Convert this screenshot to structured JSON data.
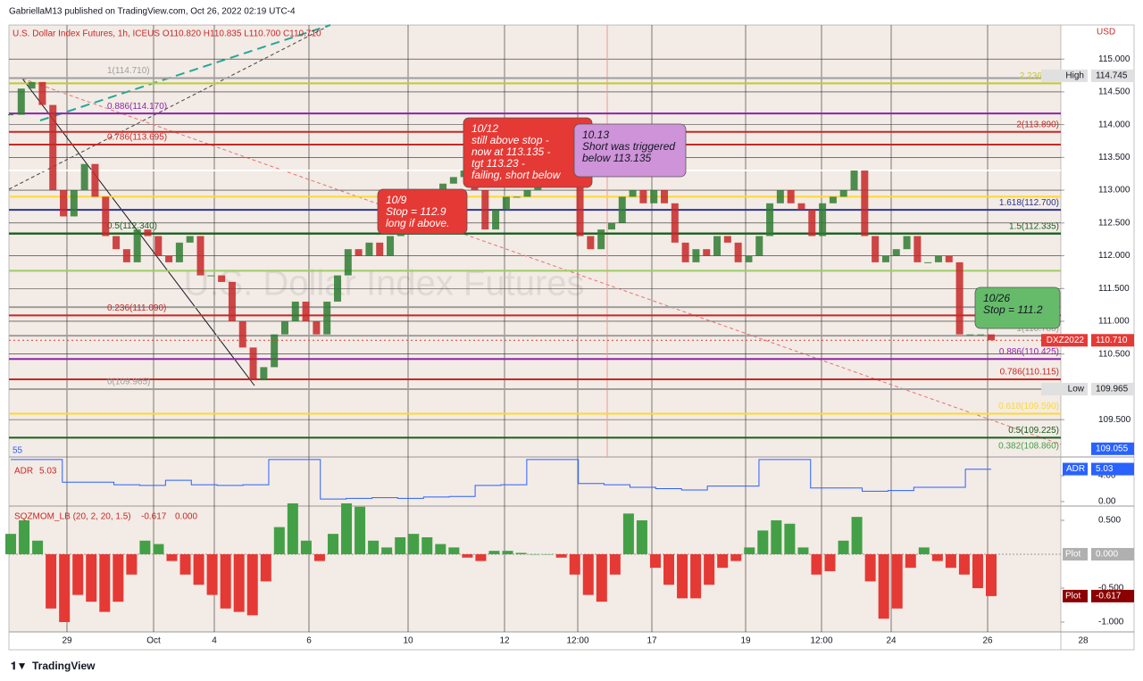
{
  "header": {
    "published": "GabriellaM13 published on TradingView.com, Oct 26, 2022 02:19 UTC-4"
  },
  "footer": {
    "brand": "TradingView"
  },
  "chart_data": [
    {
      "type": "candlestick",
      "title": "U.S. Dollar Index Futures, 1h, ICEUS  O110.820  H110.835  L110.700  C110.710",
      "watermark": "U.S. Dollar Index Futures",
      "currency": "USD",
      "side_label": "55",
      "values": [
        114.15,
        114.55,
        114.65,
        114.3,
        113.0,
        112.6,
        113.0,
        113.4,
        112.9,
        112.3,
        112.1,
        111.9,
        112.4,
        112.3,
        112.0,
        111.9,
        112.2,
        112.3,
        111.7,
        111.7,
        111.6,
        111.0,
        110.6,
        110.1,
        110.3,
        110.8,
        111.0,
        111.3,
        111.0,
        110.8,
        111.3,
        111.7,
        112.1,
        112.0,
        112.2,
        112.0,
        112.3,
        112.5,
        112.7,
        112.8,
        113.0,
        113.1,
        113.2,
        113.3,
        113.0,
        112.4,
        112.7,
        112.9,
        112.9,
        113.0,
        113.1,
        113.3,
        113.6,
        113.1,
        112.3,
        112.1,
        112.4,
        112.5,
        112.9,
        113.0,
        112.8,
        113.0,
        112.8,
        112.2,
        111.9,
        112.1,
        112.0,
        112.3,
        112.2,
        111.9,
        112.0,
        112.3,
        112.8,
        113.0,
        112.8,
        112.7,
        112.3,
        112.8,
        112.9,
        113.0,
        113.3,
        112.3,
        111.9,
        112.0,
        112.1,
        112.3,
        111.9,
        111.9,
        112.0,
        111.9,
        110.8,
        110.8,
        110.8,
        110.71
      ],
      "up_color": "#2e7d32",
      "down_color": "#c62828",
      "ylim": [
        108.93,
        115.52
      ],
      "yticks": [
        {
          "value": 115,
          "label": "115.000"
        },
        {
          "value": 114.5,
          "label": "114.500"
        },
        {
          "value": 114,
          "label": "114.000"
        },
        {
          "value": 113.5,
          "label": "113.500"
        },
        {
          "value": 113,
          "label": "113.000"
        },
        {
          "value": 112.5,
          "label": "112.500"
        },
        {
          "value": 112,
          "label": "112.000"
        },
        {
          "value": 111.5,
          "label": "111.500"
        },
        {
          "value": 111,
          "label": "111.000"
        },
        {
          "value": 110.5,
          "label": "110.500"
        },
        {
          "value": 109.5,
          "label": "109.500"
        }
      ],
      "time_labels": [
        "29",
        "Oct",
        "4",
        "6",
        "10",
        "12",
        "12:00",
        "17",
        "19",
        "12:00",
        "24",
        "26",
        "28"
      ],
      "fib_levels": [
        {
          "value": 114.71,
          "color": "#9e9e9e",
          "label": "1(114.710)",
          "side": "left"
        },
        {
          "value": 114.63,
          "color": "#c0ca33",
          "label": "2.236(114",
          "side": "right"
        },
        {
          "value": 114.17,
          "color": "#8e24aa",
          "label": "0.886(114.170)",
          "side": "left"
        },
        {
          "value": 113.89,
          "color": "#c62828",
          "label": "2(113.890)",
          "side": "right"
        },
        {
          "value": 113.695,
          "color": "#c62828",
          "label": "0.786(113.695)",
          "side": "left"
        },
        {
          "value": 113.3,
          "color": "#ffffff"
        },
        {
          "value": 112.9,
          "color": "#fdd835"
        },
        {
          "value": 112.7,
          "color": "#283593",
          "label": "1.618(112.700)",
          "side": "right"
        },
        {
          "value": 112.34,
          "color": "#1b5e20",
          "label": "0.5(112.340)",
          "side": "left"
        },
        {
          "value": 112.335,
          "color": "#1b5e20",
          "label": "1.5(112.335)",
          "side": "right"
        },
        {
          "value": 111.77,
          "color": "#9ccc65"
        },
        {
          "value": 111.215,
          "color": "#9e9e9e"
        },
        {
          "value": 111.09,
          "color": "#c62828",
          "label": "0.236(111.090)",
          "side": "left"
        },
        {
          "value": 110.78,
          "color": "#9e9e9e",
          "label": "1(110.780)",
          "side": "right"
        },
        {
          "value": 110.425,
          "color": "#8e24aa",
          "label": "0.886(110.425)",
          "side": "right"
        },
        {
          "value": 110.115,
          "color": "#c62828",
          "label": "0.786(110.115)",
          "side": "right"
        },
        {
          "value": 109.965,
          "color": "#9e9e9e",
          "label": "0(109.965)",
          "side": "left"
        },
        {
          "value": 109.59,
          "color": "#fdd835",
          "label": "0.618(109.590)",
          "side": "right"
        },
        {
          "value": 109.225,
          "color": "#1b5e20",
          "label": "0.5(109.225)",
          "side": "right"
        },
        {
          "value": 108.86,
          "color": "#43a047",
          "label": "0.382(108.860)",
          "side": "right"
        }
      ],
      "price_tags": [
        {
          "name": "High",
          "value": 114.745,
          "value_label": "114.745",
          "color": "#e0e0e0",
          "text_color": "#131722"
        },
        {
          "name": "DXZ2022",
          "value": 110.71,
          "value_label": "110.710",
          "color": "#e53935",
          "text_color": "#ffffff",
          "dotted": true
        },
        {
          "name": "Low",
          "value": 109.965,
          "value_label": "109.965",
          "color": "#e0e0e0",
          "text_color": "#131722"
        },
        {
          "value": 109.055,
          "value_label": "109.055",
          "color": "#2962ff",
          "text_color": "#ffffff"
        }
      ],
      "annotations": [
        {
          "lines": [
            "10/9",
            "Stop = 112.9",
            "long if above."
          ],
          "color": "#e53935",
          "text_color": "#ffffff"
        },
        {
          "lines": [
            "10/12",
            "still above stop -",
            "now at 113.135 -",
            " tgt 113.23 -",
            "failing, short below"
          ],
          "color": "#e53935",
          "text_color": "#ffffff"
        },
        {
          "lines": [
            "10.13",
            "Short was triggered",
            "below 113.135"
          ],
          "color": "#ce93d8",
          "text_color": "#131722"
        },
        {
          "lines": [
            "10/26",
            "Stop = 111.2"
          ],
          "color": "#66bb6a",
          "text_color": "#131722"
        }
      ]
    },
    {
      "type": "line",
      "title": "ADR",
      "last": {
        "value": 5.03,
        "label": "5.03"
      },
      "color": "#2962ff",
      "values": [
        6.5,
        6.5,
        3.0,
        3.0,
        2.6,
        2.5,
        3.3,
        2.6,
        2.5,
        2.6,
        6.5,
        6.5,
        0.4,
        0.5,
        0.6,
        0.5,
        0.7,
        0.8,
        2.5,
        2.6,
        6.5,
        6.5,
        2.8,
        2.6,
        2.2,
        2.0,
        1.8,
        2.4,
        2.4,
        6.5,
        6.5,
        2.1,
        2.1,
        1.6,
        1.7,
        2.2,
        2.2,
        5.0,
        5.0
      ],
      "ylim": [
        -0.69,
        6.9
      ],
      "yticks": [
        {
          "value": 4,
          "label": "4.00"
        },
        {
          "value": 0,
          "label": "0.00"
        }
      ]
    },
    {
      "type": "histogram",
      "title": "SQZMOM_LB (20, 2, 20, 1.5)",
      "legend_values": [
        {
          "value": -0.617,
          "label": "-0.617"
        },
        {
          "value": 0,
          "label": "0.000"
        }
      ],
      "up_color": "#43a047",
      "down_color": "#e53935",
      "values": [
        0.3,
        0.5,
        0.2,
        -0.8,
        -1.0,
        -0.6,
        -0.7,
        -0.85,
        -0.7,
        -0.3,
        0.2,
        0.15,
        -0.1,
        -0.3,
        -0.45,
        -0.6,
        -0.8,
        -0.85,
        -0.9,
        -0.4,
        0.4,
        0.75,
        0.2,
        -0.1,
        0.3,
        0.75,
        0.7,
        0.2,
        0.1,
        0.25,
        0.3,
        0.25,
        0.15,
        0.1,
        -0.05,
        -0.1,
        0.05,
        0.05,
        0.02,
        0.0,
        0.0,
        -0.05,
        -0.3,
        -0.6,
        -0.7,
        -0.3,
        0.6,
        0.5,
        -0.2,
        -0.45,
        -0.65,
        -0.65,
        -0.45,
        -0.2,
        -0.1,
        0.1,
        0.35,
        0.5,
        0.45,
        0.1,
        -0.3,
        -0.25,
        0.2,
        0.55,
        -0.4,
        -0.95,
        -0.8,
        -0.2,
        0.1,
        -0.1,
        -0.2,
        -0.3,
        -0.5,
        -0.617
      ],
      "ylim": [
        -1.145,
        0.71
      ],
      "yticks": [
        {
          "value": 0.5,
          "label": "0.500"
        },
        {
          "value": -0.5,
          "label": "-0.500"
        },
        {
          "value": -1,
          "label": "-1.000"
        }
      ],
      "tags": [
        {
          "name": "Plot",
          "value": 0,
          "value_label": "0.000",
          "color": "#b0b0b0"
        },
        {
          "name": "Plot",
          "value": -0.617,
          "value_label": "-0.617",
          "color": "#8b0000"
        }
      ]
    }
  ]
}
